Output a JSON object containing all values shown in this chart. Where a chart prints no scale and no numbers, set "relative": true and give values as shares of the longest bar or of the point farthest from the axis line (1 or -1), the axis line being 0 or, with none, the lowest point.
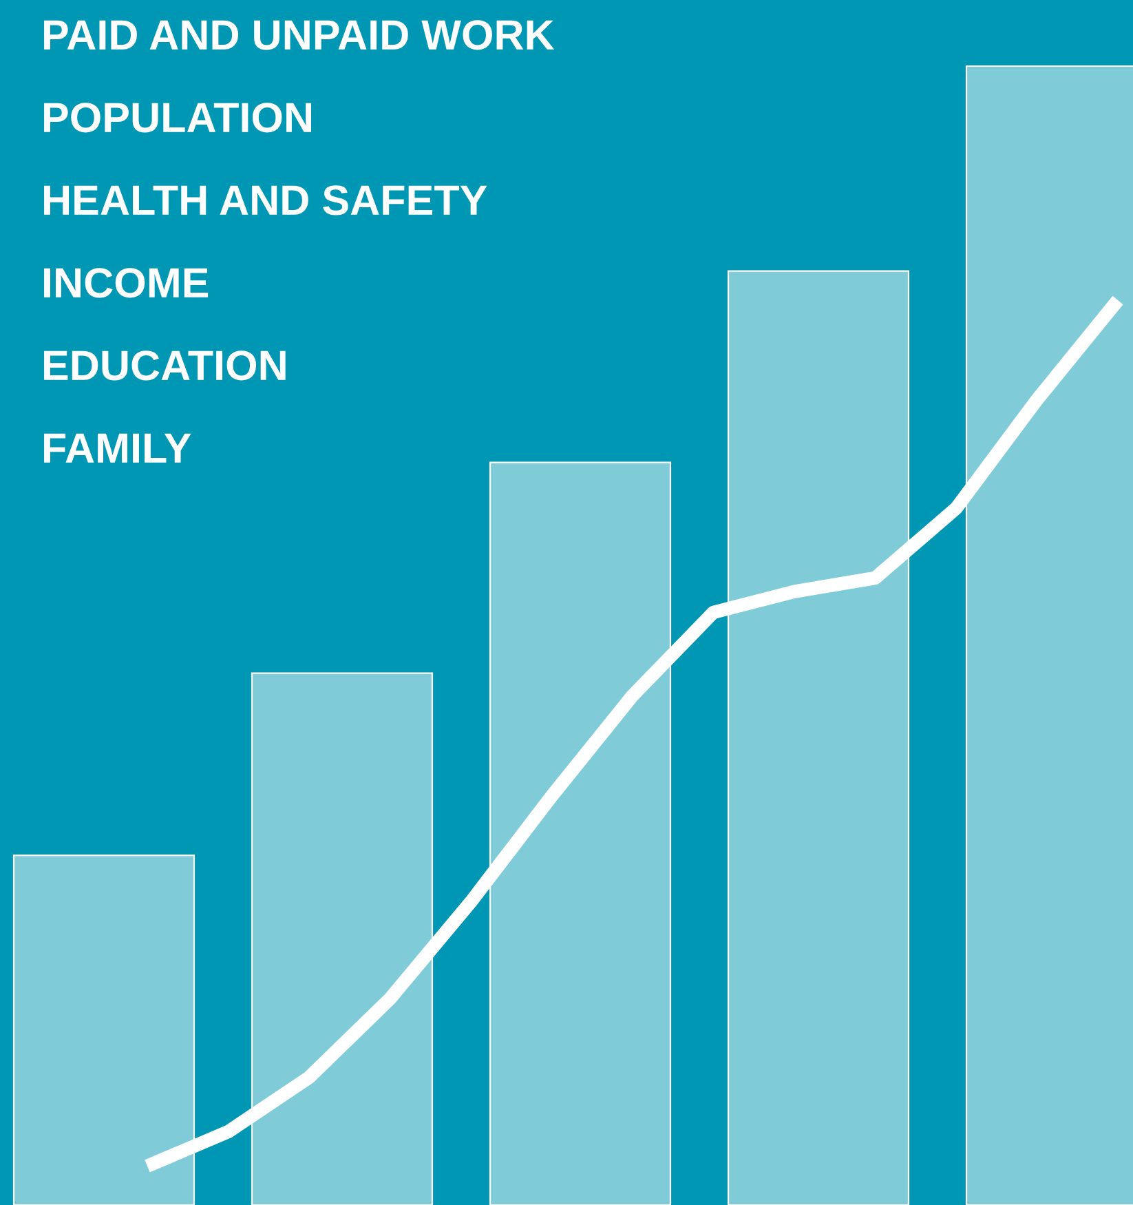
{
  "chart_data": [
    {
      "type": "bar",
      "relative": true,
      "annotations": [
        "PAID AND UNPAID WORK",
        "POPULATION",
        "HEALTH AND SAFETY",
        "INCOME",
        "EDUCATION",
        "FAMILY"
      ],
      "categories": [
        null,
        null,
        null,
        null,
        null
      ],
      "series": [
        {
          "color": "#80cbd8",
          "values": [
            0.307,
            0.467,
            0.652,
            0.82,
            1.0
          ]
        }
      ]
    },
    {
      "type": "line",
      "relative": true,
      "categories": [
        null,
        null,
        null,
        null,
        null,
        null,
        null,
        null,
        null,
        null,
        null,
        null,
        null
      ],
      "series": [
        {
          "color": "#ffffff",
          "values": [
            0.043,
            0.081,
            0.141,
            0.228,
            0.335,
            0.452,
            0.563,
            0.655,
            0.678,
            0.693,
            0.77,
            0.89,
            1.0
          ]
        }
      ]
    }
  ]
}
